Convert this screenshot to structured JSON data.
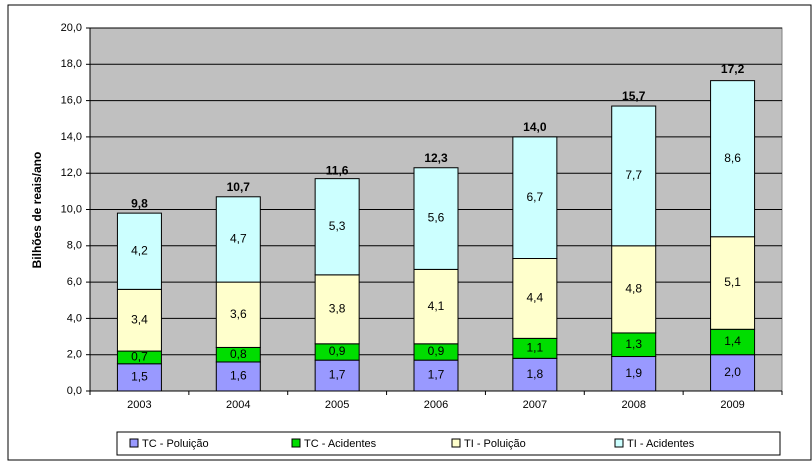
{
  "chart_data": {
    "type": "stacked_bar",
    "ylabel": "Bilhões de reais/ano",
    "categories": [
      "2003",
      "2004",
      "2005",
      "2006",
      "2007",
      "2008",
      "2009"
    ],
    "series": [
      {
        "name": "TC - Poluição",
        "color": "#9999ff",
        "values": [
          1.5,
          1.6,
          1.7,
          1.7,
          1.8,
          1.9,
          2.0
        ],
        "value_labels": [
          "1,5",
          "1,6",
          "1,7",
          "1,7",
          "1,8",
          "1,9",
          "2,0"
        ]
      },
      {
        "name": "TC - Acidentes",
        "color": "#00dd00",
        "values": [
          0.7,
          0.8,
          0.9,
          0.9,
          1.1,
          1.3,
          1.4
        ],
        "value_labels": [
          "0,7",
          "0,8",
          "0,9",
          "0,9",
          "1,1",
          "1,3",
          "1,4"
        ]
      },
      {
        "name": "TI - Poluição",
        "color": "#ffffcc",
        "values": [
          3.4,
          3.6,
          3.8,
          4.1,
          4.4,
          4.8,
          5.1
        ],
        "value_labels": [
          "3,4",
          "3,6",
          "3,8",
          "4,1",
          "4,4",
          "4,8",
          "5,1"
        ]
      },
      {
        "name": "TI - Acidentes",
        "color": "#ccffff",
        "values": [
          4.2,
          4.7,
          5.3,
          5.6,
          6.7,
          7.7,
          8.6
        ],
        "value_labels": [
          "4,2",
          "4,7",
          "5,3",
          "5,6",
          "6,7",
          "7,7",
          "8,6"
        ]
      }
    ],
    "totals": [
      9.8,
      10.7,
      11.6,
      12.3,
      14.0,
      15.7,
      17.2
    ],
    "totals_labels": [
      "9,8",
      "10,7",
      "11,6",
      "12,3",
      "14,0",
      "15,7",
      "17,2"
    ],
    "ylim": [
      0,
      20
    ],
    "yticks": [
      {
        "value": 0,
        "label": "0,0"
      },
      {
        "value": 2,
        "label": "2,0"
      },
      {
        "value": 4,
        "label": "4,0"
      },
      {
        "value": 6,
        "label": "6,0"
      },
      {
        "value": 8,
        "label": "8,0"
      },
      {
        "value": 10,
        "label": "10,0"
      },
      {
        "value": 12,
        "label": "12,0"
      },
      {
        "value": 14,
        "label": "14,0"
      },
      {
        "value": 16,
        "label": "16,0"
      },
      {
        "value": 18,
        "label": "18,0"
      },
      {
        "value": 20,
        "label": "20,0"
      }
    ],
    "grid": true,
    "plot_background": "#c0c0c0",
    "legend": "bottom"
  }
}
